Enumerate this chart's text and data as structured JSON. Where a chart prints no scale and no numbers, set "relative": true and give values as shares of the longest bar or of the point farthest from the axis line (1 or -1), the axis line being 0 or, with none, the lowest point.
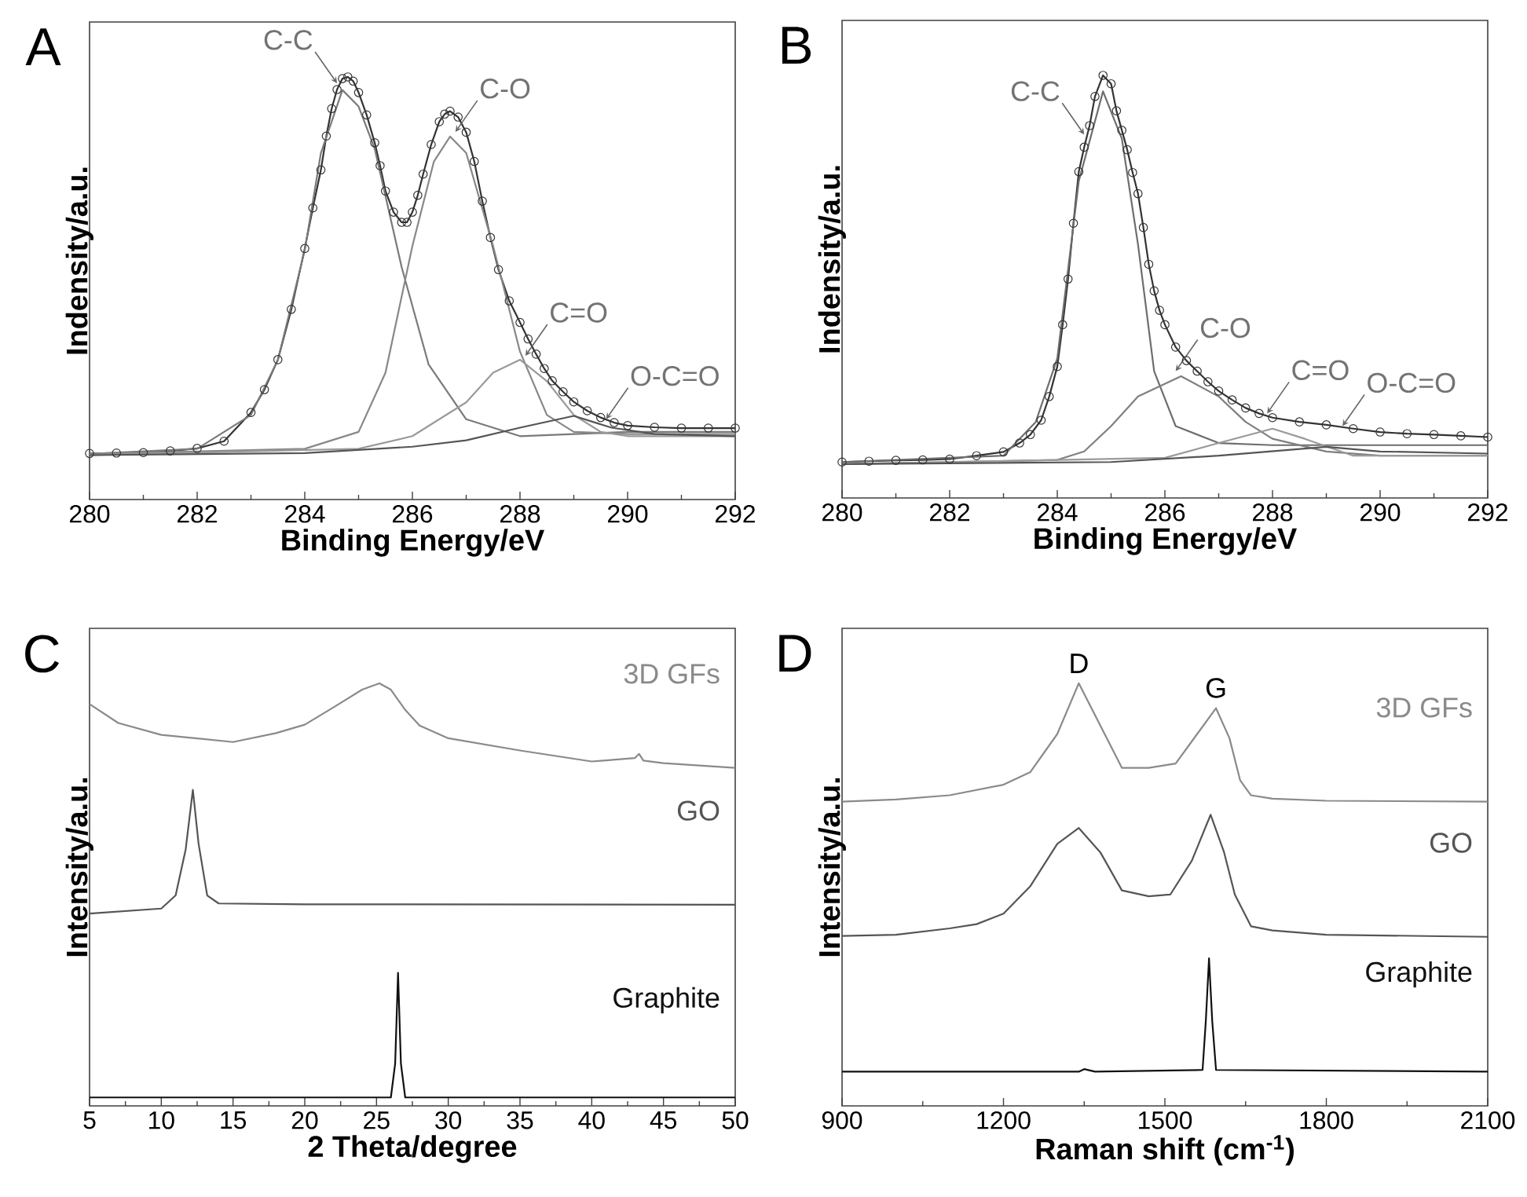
{
  "chart_data": [
    {
      "type": "line",
      "title": "A",
      "xlabel": "Binding Energy/eV",
      "ylabel": "Indensity/a.u.",
      "relative": true,
      "xlim": [
        280,
        292
      ],
      "xticks": [
        280,
        282,
        284,
        286,
        288,
        290,
        292
      ],
      "series": [
        {
          "color": "#333333",
          "marker": "circle",
          "x": [
            280,
            280.5,
            281,
            281.5,
            282,
            282.5,
            283,
            283.25,
            283.5,
            283.75,
            284,
            284.15,
            284.3,
            284.4,
            284.5,
            284.6,
            284.7,
            284.8,
            284.9,
            285,
            285.15,
            285.3,
            285.4,
            285.5,
            285.65,
            285.8,
            285.9,
            286,
            286.1,
            286.2,
            286.35,
            286.5,
            286.6,
            286.7,
            286.85,
            287,
            287.15,
            287.3,
            287.45,
            287.6,
            287.8,
            288,
            288.15,
            288.3,
            288.45,
            288.6,
            288.8,
            289,
            289.25,
            289.5,
            289.75,
            290,
            290.5,
            291,
            291.5,
            292
          ],
          "values": [
            0.109,
            0.11,
            0.111,
            0.115,
            0.121,
            0.138,
            0.206,
            0.26,
            0.331,
            0.45,
            0.594,
            0.69,
            0.78,
            0.86,
            0.925,
            0.97,
            0.996,
            1.0,
            0.99,
            0.963,
            0.91,
            0.844,
            0.79,
            0.73,
            0.68,
            0.656,
            0.656,
            0.68,
            0.72,
            0.77,
            0.84,
            0.894,
            0.912,
            0.919,
            0.905,
            0.869,
            0.8,
            0.706,
            0.62,
            0.544,
            0.47,
            0.419,
            0.38,
            0.344,
            0.31,
            0.281,
            0.255,
            0.231,
            0.21,
            0.194,
            0.182,
            0.175,
            0.171,
            0.169,
            0.169,
            0.169
          ]
        },
        {
          "color": "#7a7a7a",
          "x": [
            280,
            282,
            283,
            283.5,
            284,
            284.3,
            284.7,
            285,
            285.3,
            285.8,
            286.3,
            287,
            288,
            289,
            290,
            292
          ],
          "values": [
            0.108,
            0.12,
            0.2,
            0.33,
            0.59,
            0.82,
            0.969,
            0.93,
            0.83,
            0.55,
            0.32,
            0.19,
            0.15,
            0.155,
            0.16,
            0.16
          ]
        },
        {
          "color": "#888888",
          "x": [
            280,
            284,
            285,
            285.5,
            286,
            286.4,
            286.7,
            287,
            287.5,
            288,
            288.5,
            289,
            290,
            292
          ],
          "values": [
            0.108,
            0.12,
            0.16,
            0.3,
            0.6,
            0.8,
            0.859,
            0.82,
            0.6,
            0.35,
            0.2,
            0.16,
            0.155,
            0.155
          ]
        },
        {
          "color": "#9a9a9a",
          "x": [
            280,
            285,
            286,
            287,
            287.5,
            288,
            288.5,
            289,
            289.5,
            290,
            292
          ],
          "values": [
            0.105,
            0.12,
            0.15,
            0.23,
            0.3,
            0.331,
            0.28,
            0.2,
            0.16,
            0.15,
            0.15
          ]
        },
        {
          "color": "#555555",
          "x": [
            280,
            284,
            286,
            287,
            288,
            289,
            289.7,
            290.5,
            292
          ],
          "values": [
            0.105,
            0.11,
            0.125,
            0.14,
            0.17,
            0.198,
            0.17,
            0.155,
            0.15
          ]
        }
      ],
      "annotations": [
        {
          "text": "C-C",
          "x": 284.6,
          "y": 0.985
        },
        {
          "text": "C-O",
          "x": 286.8,
          "y": 0.87
        },
        {
          "text": "C=O",
          "x": 288.1,
          "y": 0.34
        },
        {
          "text": "O-C=O",
          "x": 289.6,
          "y": 0.19
        }
      ]
    },
    {
      "type": "line",
      "title": "B",
      "xlabel": "Binding Energy/eV",
      "ylabel": "Indensity/a.u.",
      "relative": true,
      "xlim": [
        280,
        292
      ],
      "xticks": [
        280,
        282,
        284,
        286,
        288,
        290,
        292
      ],
      "series": [
        {
          "color": "#333333",
          "marker": "circle",
          "x": [
            280,
            280.5,
            281,
            281.5,
            282,
            282.5,
            283,
            283.3,
            283.5,
            283.7,
            283.85,
            284,
            284.1,
            284.2,
            284.3,
            284.4,
            284.5,
            284.6,
            284.7,
            284.85,
            285,
            285.1,
            285.2,
            285.3,
            285.4,
            285.5,
            285.6,
            285.7,
            285.8,
            285.9,
            286,
            286.2,
            286.4,
            286.6,
            286.8,
            287,
            287.25,
            287.5,
            287.75,
            288,
            288.5,
            289,
            289.5,
            290,
            290.5,
            291,
            291.5,
            292
          ],
          "values": [
            0.085,
            0.087,
            0.089,
            0.09,
            0.092,
            0.1,
            0.109,
            0.13,
            0.15,
            0.184,
            0.24,
            0.311,
            0.41,
            0.518,
            0.65,
            0.772,
            0.83,
            0.881,
            0.95,
            1.0,
            0.98,
            0.916,
            0.87,
            0.824,
            0.77,
            0.72,
            0.64,
            0.553,
            0.49,
            0.444,
            0.41,
            0.357,
            0.325,
            0.3,
            0.275,
            0.253,
            0.232,
            0.213,
            0.2,
            0.19,
            0.18,
            0.173,
            0.164,
            0.156,
            0.152,
            0.15,
            0.147,
            0.144
          ]
        },
        {
          "color": "#6e6e6e",
          "x": [
            280,
            283,
            283.6,
            284,
            284.4,
            284.85,
            285.2,
            285.5,
            285.8,
            286.2,
            287,
            288,
            290,
            292
          ],
          "values": [
            0.085,
            0.1,
            0.18,
            0.33,
            0.75,
            0.962,
            0.85,
            0.6,
            0.3,
            0.17,
            0.13,
            0.125,
            0.125,
            0.125
          ]
        },
        {
          "color": "#7f7f7f",
          "x": [
            280,
            284,
            284.5,
            285,
            285.5,
            286.3,
            287,
            287.5,
            288,
            289,
            290,
            292
          ],
          "values": [
            0.08,
            0.09,
            0.11,
            0.17,
            0.24,
            0.288,
            0.24,
            0.18,
            0.14,
            0.11,
            0.1,
            0.1
          ]
        },
        {
          "color": "#9a9a9a",
          "x": [
            280,
            286,
            287,
            288,
            288.6,
            289.5,
            290.5,
            292
          ],
          "values": [
            0.08,
            0.095,
            0.13,
            0.164,
            0.14,
            0.1,
            0.1,
            0.1
          ]
        },
        {
          "color": "#555555",
          "x": [
            280,
            285,
            287,
            289,
            290,
            292
          ],
          "values": [
            0.08,
            0.085,
            0.1,
            0.121,
            0.11,
            0.105
          ]
        }
      ],
      "annotations": [
        {
          "text": "C-C",
          "x": 284.5,
          "y": 0.86
        },
        {
          "text": "C-O",
          "x": 286.2,
          "y": 0.3
        },
        {
          "text": "C=O",
          "x": 287.9,
          "y": 0.2
        },
        {
          "text": "O-C=O",
          "x": 289.3,
          "y": 0.17
        }
      ]
    },
    {
      "type": "line",
      "title": "C",
      "xlabel": "2 Theta/degree",
      "ylabel": "Intensity/a.u.",
      "relative": true,
      "xlim": [
        5,
        50
      ],
      "xticks": [
        5,
        10,
        15,
        20,
        25,
        30,
        35,
        40,
        45,
        50
      ],
      "series": [
        {
          "name": "3D GFs",
          "color": "#8a8a8a",
          "x": [
            5,
            7,
            10,
            15,
            18,
            20,
            22,
            24,
            25.2,
            26,
            27,
            28,
            30,
            35,
            40,
            43,
            43.3,
            43.6,
            45,
            50
          ],
          "values": [
            0.951,
            0.906,
            0.878,
            0.861,
            0.882,
            0.902,
            0.943,
            0.985,
            1.0,
            0.985,
            0.937,
            0.9,
            0.87,
            0.841,
            0.815,
            0.823,
            0.833,
            0.817,
            0.811,
            0.8
          ]
        },
        {
          "name": "GO",
          "color": "#555555",
          "x": [
            5,
            10,
            11,
            11.7,
            12.2,
            12.6,
            13.2,
            14,
            20,
            50
          ],
          "values": [
            0.455,
            0.467,
            0.498,
            0.607,
            0.748,
            0.62,
            0.498,
            0.479,
            0.477,
            0.476
          ]
        },
        {
          "name": "Graphite",
          "color": "#111111",
          "x": [
            5,
            26,
            26.3,
            26.5,
            26.7,
            27,
            50
          ],
          "values": [
            0.02,
            0.02,
            0.1,
            0.315,
            0.1,
            0.02,
            0.02
          ]
        }
      ]
    },
    {
      "type": "line",
      "title": "D",
      "xlabel": "Raman shift (cm$^{-1}$)",
      "ylabel": "Intensity/a.u.",
      "relative": true,
      "xlim": [
        900,
        2100
      ],
      "xticks": [
        900,
        1200,
        1500,
        1800,
        2100
      ],
      "series": [
        {
          "name": "3D GFs",
          "color": "#8a8a8a",
          "x": [
            900,
            1000,
            1100,
            1200,
            1250,
            1300,
            1340,
            1380,
            1420,
            1470,
            1520,
            1560,
            1595,
            1620,
            1640,
            1660,
            1700,
            1800,
            2100
          ],
          "values": [
            0.72,
            0.725,
            0.735,
            0.76,
            0.79,
            0.88,
            1.0,
            0.9,
            0.8,
            0.8,
            0.81,
            0.88,
            0.941,
            0.87,
            0.77,
            0.735,
            0.727,
            0.722,
            0.72
          ]
        },
        {
          "name": "GO",
          "color": "#555555",
          "x": [
            900,
            1000,
            1100,
            1150,
            1200,
            1250,
            1300,
            1340,
            1380,
            1420,
            1470,
            1510,
            1550,
            1585,
            1610,
            1630,
            1660,
            1700,
            1800,
            2100
          ],
          "values": [
            0.402,
            0.405,
            0.42,
            0.43,
            0.455,
            0.52,
            0.62,
            0.6575,
            0.6,
            0.51,
            0.496,
            0.5,
            0.58,
            0.689,
            0.6,
            0.5,
            0.425,
            0.415,
            0.405,
            0.4
          ]
        },
        {
          "name": "Graphite",
          "color": "#111111",
          "x": [
            900,
            1340,
            1350,
            1370,
            1570,
            1576,
            1582,
            1588,
            1595,
            2100
          ],
          "values": [
            0.081,
            0.081,
            0.087,
            0.081,
            0.085,
            0.2,
            0.349,
            0.2,
            0.085,
            0.081
          ]
        }
      ],
      "annotations": [
        {
          "text": "D",
          "x": 1340,
          "y": 1.0
        },
        {
          "text": "G",
          "x": 1595,
          "y": 0.941
        }
      ]
    }
  ]
}
